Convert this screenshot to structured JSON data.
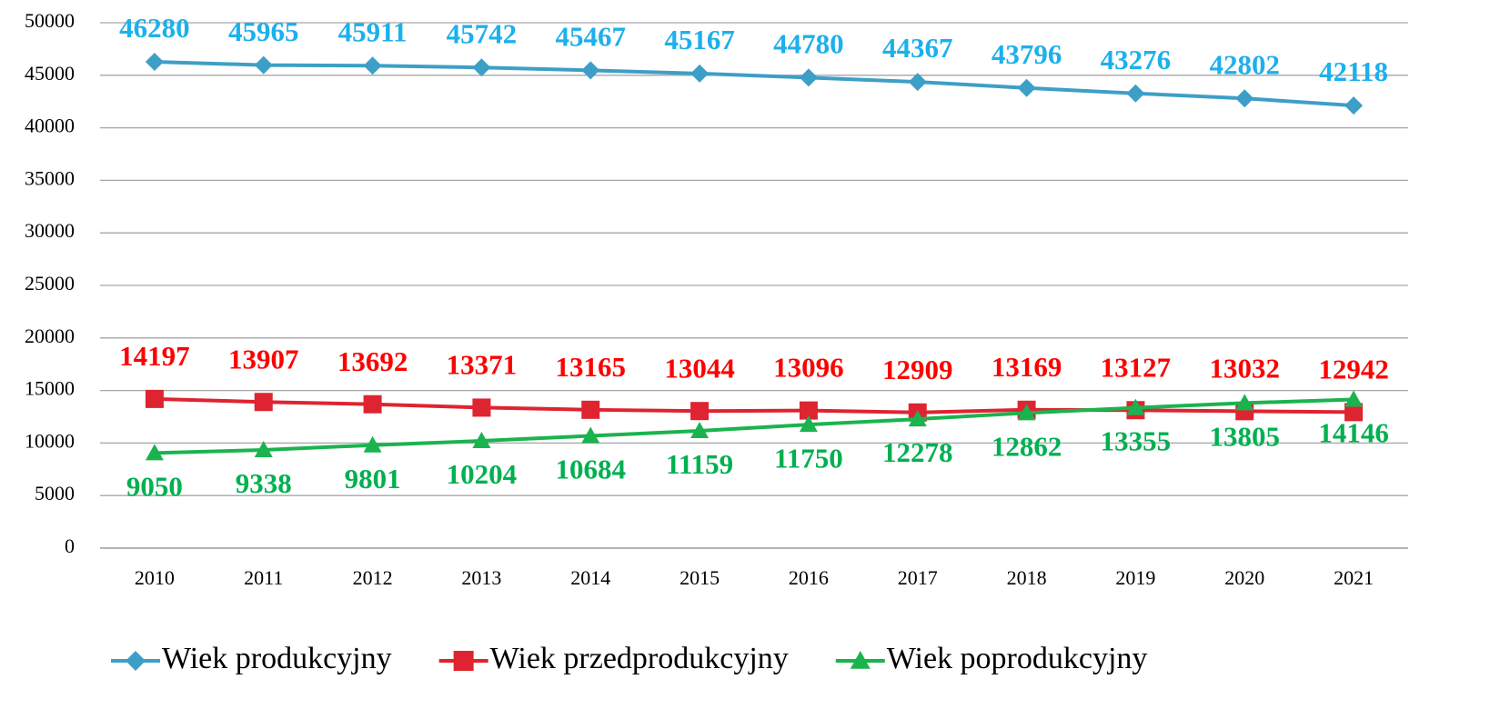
{
  "chart_data": {
    "type": "line",
    "categories": [
      "2010",
      "2011",
      "2012",
      "2013",
      "2014",
      "2015",
      "2016",
      "2017",
      "2018",
      "2019",
      "2020",
      "2021"
    ],
    "series": [
      {
        "name": "Wiek produkcyjny",
        "color": "#3d9fc7",
        "label_color": "#1cb0ec",
        "marker": "diamond",
        "values": [
          46280,
          45965,
          45911,
          45742,
          45467,
          45167,
          44780,
          44367,
          43796,
          43276,
          42802,
          42118
        ]
      },
      {
        "name": "Wiek przedprodukcyjny",
        "color": "#de2430",
        "label_color": "#ff0000",
        "marker": "square",
        "values": [
          14197,
          13907,
          13692,
          13371,
          13165,
          13044,
          13096,
          12909,
          13169,
          13127,
          13032,
          12942
        ]
      },
      {
        "name": "Wiek poprodukcyjny",
        "color": "#1bb34f",
        "label_color": "#00b050",
        "marker": "triangle",
        "values": [
          9050,
          9338,
          9801,
          10204,
          10684,
          11159,
          11750,
          12278,
          12862,
          13355,
          13805,
          14146
        ]
      }
    ],
    "ylim": [
      0,
      50000
    ],
    "yticks": [
      0,
      5000,
      10000,
      15000,
      20000,
      25000,
      30000,
      35000,
      40000,
      45000,
      50000
    ],
    "grid": true,
    "legend": "bottom"
  }
}
